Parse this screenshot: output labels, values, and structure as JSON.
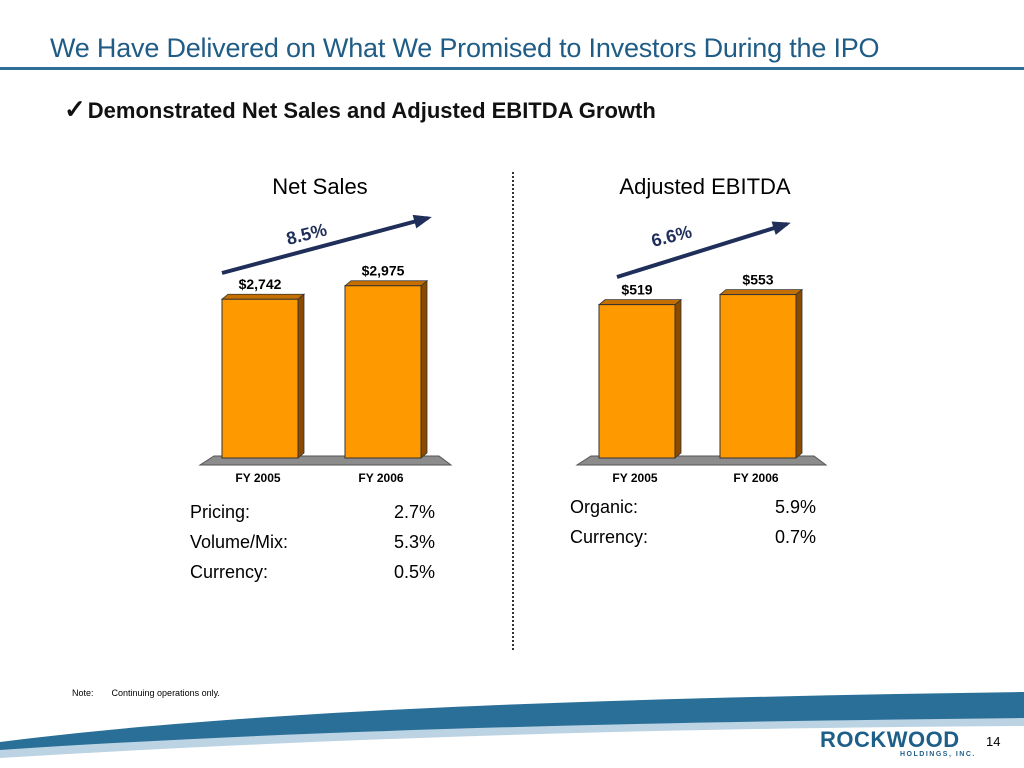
{
  "slide": {
    "title": "We Have Delivered on What We Promised to Investors During the IPO",
    "subtitle_check": "✓",
    "subtitle": "Demonstrated Net Sales and Adjusted EBITDA Growth",
    "page_number": "14"
  },
  "chart_data": [
    {
      "type": "bar",
      "title": "Net Sales",
      "categories": [
        "FY 2005",
        "FY 2006"
      ],
      "values": [
        2742,
        2975
      ],
      "value_labels": [
        "$2,742",
        "$2,975"
      ],
      "growth_label": "8.5%",
      "bar_color": "#ff9900"
    },
    {
      "type": "bar",
      "title": "Adjusted EBITDA",
      "categories": [
        "FY 2005",
        "FY 2006"
      ],
      "values": [
        519,
        553
      ],
      "value_labels": [
        "$519",
        "$553"
      ],
      "growth_label": "6.6%",
      "bar_color": "#ff9900"
    }
  ],
  "net_sales_breakdown": [
    {
      "label": "Pricing:",
      "value": "2.7%"
    },
    {
      "label": "Volume/Mix:",
      "value": "5.3%"
    },
    {
      "label": "Currency:",
      "value": "0.5%"
    }
  ],
  "ebitda_breakdown": [
    {
      "label": "Organic:",
      "value": "5.9%"
    },
    {
      "label": "Currency:",
      "value": "0.7%"
    }
  ],
  "note": {
    "label": "Note:",
    "text": "Continuing operations only."
  },
  "logo": {
    "name": "ROCKWOOD",
    "sub": "HOLDINGS, INC."
  },
  "colors": {
    "title": "#1f5c86",
    "bar": "#ff9900",
    "bar_side": "#8a4b00",
    "arrow": "#1f2f5a"
  }
}
